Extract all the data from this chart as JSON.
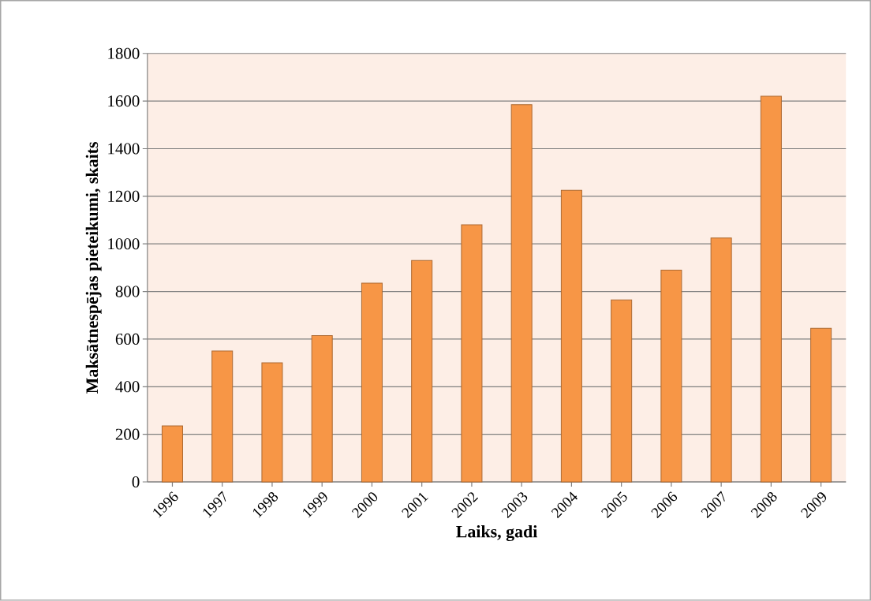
{
  "chart_data": {
    "type": "bar",
    "xlabel": "Laiks, gadi",
    "ylabel": "Maksātnespējas pieteikumi, skaits",
    "categories": [
      "1996",
      "1997",
      "1998",
      "1999",
      "2000",
      "2001",
      "2002",
      "2003",
      "2004",
      "2005",
      "2006",
      "2007",
      "2008",
      "2009"
    ],
    "values": [
      235,
      550,
      500,
      615,
      835,
      930,
      1080,
      1585,
      1225,
      765,
      890,
      1025,
      1620,
      645
    ],
    "color": "#f79646",
    "ylim": [
      0,
      1800
    ],
    "yticks": [
      0,
      200,
      400,
      600,
      800,
      1000,
      1200,
      1400,
      1600,
      1800
    ],
    "grid": "y"
  }
}
